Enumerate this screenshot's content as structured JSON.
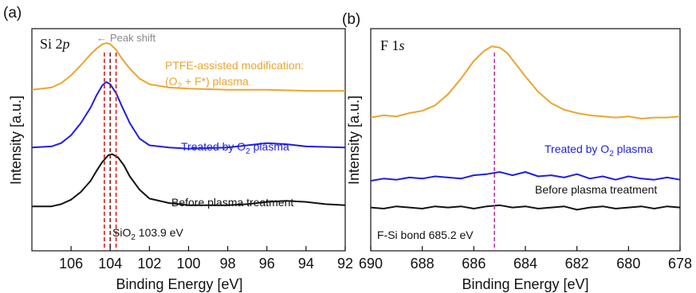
{
  "chart_data": [
    {
      "type": "line",
      "panel_label": "(a)",
      "title_main": "Si 2",
      "title_orbital": "p",
      "xlabel": "Binding Energy [eV]",
      "ylabel": "Intensity [a.u.]",
      "xlim": [
        108,
        92
      ],
      "x_reversed": true,
      "ylim": [
        0,
        10
      ],
      "xticks": [
        106,
        104,
        102,
        100,
        98,
        96,
        94,
        92
      ],
      "yticks_shown": false,
      "grid": false,
      "series": [
        {
          "name": "PTFE-assisted modification: (O2 + F*) plasma",
          "color": "#e8a630",
          "x": [
            108,
            107,
            106.5,
            106,
            105.5,
            105,
            104.7,
            104.4,
            104.2,
            104.0,
            103.7,
            103.4,
            103,
            102.5,
            102,
            101,
            100,
            98,
            96,
            94,
            92
          ],
          "y": [
            7.25,
            7.35,
            7.55,
            7.9,
            8.35,
            8.85,
            9.1,
            9.3,
            9.35,
            9.3,
            9.05,
            8.65,
            8.2,
            7.75,
            7.5,
            7.35,
            7.3,
            7.25,
            7.25,
            7.2,
            7.2
          ]
        },
        {
          "name": "Treated  by O2 plasma",
          "color": "#1f1fdc",
          "x": [
            108,
            107,
            106.5,
            106,
            105.5,
            105,
            104.7,
            104.4,
            104.2,
            104.0,
            103.7,
            103.4,
            103,
            102.5,
            102,
            101,
            100,
            98,
            97,
            96,
            95,
            94,
            92
          ],
          "y": [
            4.65,
            4.7,
            4.85,
            5.2,
            5.75,
            6.45,
            7.0,
            7.45,
            7.6,
            7.5,
            7.1,
            6.5,
            5.75,
            5.05,
            4.75,
            4.65,
            4.6,
            4.65,
            4.75,
            4.85,
            4.8,
            4.7,
            4.65
          ]
        },
        {
          "name": "Before plasma treatment",
          "color": "#111111",
          "x": [
            108,
            107,
            106.5,
            106,
            105.5,
            105,
            104.7,
            104.4,
            104.1,
            103.9,
            103.6,
            103.3,
            103,
            102.5,
            102,
            101,
            100,
            98,
            97,
            96,
            95,
            94,
            93,
            92
          ],
          "y": [
            2.0,
            2.0,
            2.1,
            2.3,
            2.65,
            3.15,
            3.6,
            4.0,
            4.3,
            4.35,
            4.2,
            3.85,
            3.35,
            2.75,
            2.35,
            2.15,
            2.05,
            2.05,
            2.1,
            2.2,
            2.25,
            2.2,
            2.1,
            2.05
          ]
        }
      ],
      "reference_lines": [
        {
          "x": 104.3,
          "color": "#d62020",
          "style": "dashed"
        },
        {
          "x": 104.0,
          "color": "#7b1c20",
          "style": "dashed"
        },
        {
          "x": 103.7,
          "color": "#d62020",
          "style": "dashed"
        }
      ],
      "annotations": {
        "peak_shift_arrow": "←",
        "peak_shift": "Peak shift",
        "sio2_main": "SiO",
        "sio2_sub": "2",
        "sio2_value": " 103.9 eV",
        "ptfe_line1": "PTFE-assisted modification:",
        "ptfe_line2_a": "(O",
        "ptfe_line2_sub": "2",
        "ptfe_line2_b": " + F*) plasma",
        "o2_a": "Treated  by O",
        "o2_sub": "2",
        "o2_b": " plasma",
        "before": "Before plasma treatment"
      }
    },
    {
      "type": "line",
      "panel_label": "(b)",
      "title_main": "F 1",
      "title_orbital": "s",
      "xlabel": "Binding Energy [eV]",
      "ylabel": "Intensity [a.u.]",
      "xlim": [
        690,
        678
      ],
      "x_reversed": true,
      "ylim": [
        0,
        10
      ],
      "xticks": [
        690,
        688,
        686,
        684,
        682,
        680,
        678
      ],
      "yticks_shown": false,
      "grid": false,
      "series": [
        {
          "name": "PTFE-assisted modification: (O2 + F*) plasma",
          "color": "#e8a630",
          "x": [
            690,
            689.5,
            689,
            688.5,
            688,
            687.5,
            687,
            686.5,
            686,
            685.6,
            685.3,
            685.0,
            684.7,
            684.4,
            684,
            683.5,
            683,
            682.5,
            682,
            681.5,
            681,
            680.5,
            680,
            679.5,
            679,
            678.5,
            678
          ],
          "y": [
            6.0,
            6.1,
            6.05,
            6.2,
            6.3,
            6.55,
            7.05,
            7.75,
            8.55,
            9.0,
            9.2,
            9.15,
            8.9,
            8.45,
            7.85,
            7.15,
            6.65,
            6.35,
            6.2,
            6.1,
            6.05,
            6.0,
            6.05,
            5.95,
            6.0,
            6.0,
            6.05
          ]
        },
        {
          "name": "Treated  by O2 plasma",
          "color": "#1f1fdc",
          "x": [
            690,
            689.5,
            689,
            688.5,
            688,
            687.5,
            687,
            686.5,
            686,
            685.5,
            685,
            684.5,
            684,
            683.5,
            683,
            682.5,
            682,
            681.5,
            681,
            680.5,
            680,
            679.5,
            679,
            678.5,
            678
          ],
          "y": [
            3.15,
            3.25,
            3.2,
            3.3,
            3.25,
            3.35,
            3.3,
            3.25,
            3.4,
            3.45,
            3.55,
            3.4,
            3.55,
            3.35,
            3.4,
            3.3,
            3.45,
            3.25,
            3.35,
            3.2,
            3.35,
            3.25,
            3.2,
            3.3,
            3.2
          ]
        },
        {
          "name": "Before plasma treatment",
          "color": "#111111",
          "x": [
            690,
            689.5,
            689,
            688.5,
            688,
            687.5,
            687,
            686.5,
            686,
            685.5,
            685,
            684.5,
            684,
            683.5,
            683,
            682.5,
            682,
            681.5,
            681,
            680.5,
            680,
            679.5,
            679,
            678.5,
            678
          ],
          "y": [
            1.95,
            1.9,
            2.0,
            1.95,
            1.9,
            2.0,
            1.95,
            2.0,
            1.9,
            2.0,
            2.05,
            1.95,
            2.0,
            1.9,
            1.95,
            2.0,
            1.85,
            1.95,
            2.0,
            1.9,
            1.95,
            2.0,
            1.9,
            2.0,
            1.95
          ]
        }
      ],
      "reference_lines": [
        {
          "x": 685.2,
          "color": "#b03aa8",
          "style": "dashed"
        }
      ],
      "annotations": {
        "o2_a": "Treated  by O",
        "o2_sub": "2",
        "o2_b": " plasma",
        "before": "Before plasma treatment",
        "fsi": "F-Si  bond 685.2 eV"
      }
    }
  ]
}
